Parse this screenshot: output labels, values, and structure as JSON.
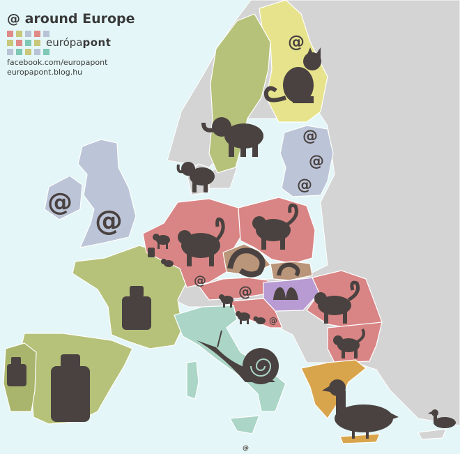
{
  "header": {
    "title": "@ around Europe",
    "logo_light": "európa",
    "logo_bold": "pont",
    "logo_squares": [
      [
        "#e08a87",
        "#c9c77a",
        "#b9c3d6",
        "#e08a87",
        "#b9c3d6"
      ],
      [
        "#c9c77a",
        "#e08a87",
        "#7ec8b5",
        "#c9c77a"
      ],
      [
        "#b9c3d6",
        "#7ec8b5",
        "#c9c77a",
        "#b9c3d6",
        "#7ec8b5"
      ]
    ],
    "facebook": "facebook.com/europapont",
    "blog": "europapont.blog.hu"
  },
  "colors": {
    "sea": "#e4f6f7",
    "other_land": "#d4d4d4",
    "elephant_trunk": "#b6c27a",
    "monkey_tail": "#d98585",
    "at_sign": "#bcc5d8",
    "cat_tail": "#e6e38c",
    "snail": "#abd6c7",
    "rollmops": "#b99579",
    "moustache": "#b89bd2",
    "duck": "#d9a54c",
    "weight_kg": "#b6c27a",
    "icon": "#4a4240"
  },
  "map": {
    "at_symbol": "@",
    "footer_symbol": "@",
    "icons": {
      "finland": "cat-icon",
      "sweden": "elephant-icon",
      "denmark": "elephant-icon",
      "baltics": "at-icon",
      "uk_ireland": "at-icon",
      "germany_poland_romania_bulgaria_austria_slovenia_croatia": "monkey-icon",
      "czechia_slovakia": "rolled-herring-icon",
      "hungary": "worm-icon",
      "italy": "snail-icon",
      "france_spain_portugal": "weight-icon",
      "greece_cyprus": "duck-icon"
    }
  }
}
